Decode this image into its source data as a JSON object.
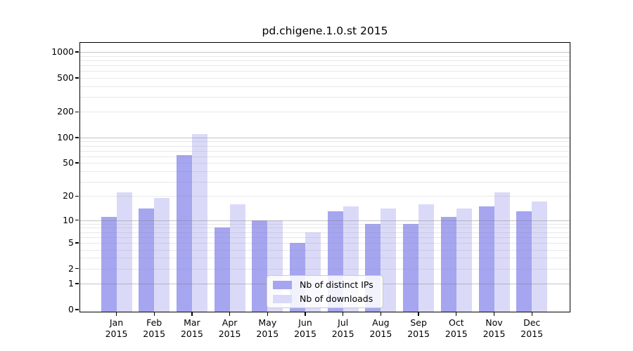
{
  "title": "pd.chigene.1.0.st 2015",
  "chart_data": {
    "type": "bar",
    "title": "pd.chigene.1.0.st 2015",
    "categories": [
      "Jan 2015",
      "Feb 2015",
      "Mar 2015",
      "Apr 2015",
      "May 2015",
      "Jun 2015",
      "Jul 2015",
      "Aug 2015",
      "Sep 2015",
      "Oct 2015",
      "Nov 2015",
      "Dec 2015"
    ],
    "series": [
      {
        "name": "Nb of distinct IPs",
        "color": "#a5a5f0",
        "values": [
          11,
          14,
          62,
          8,
          10,
          5,
          13,
          9,
          9,
          11,
          15,
          13
        ]
      },
      {
        "name": "Nb of downloads",
        "color": "#dadaf8",
        "values": [
          22,
          19,
          110,
          16,
          10,
          7,
          15,
          14,
          16,
          14,
          22,
          17
        ]
      }
    ],
    "xlabel": "",
    "ylabel": "",
    "y_scale": "log1p",
    "ylim": [
      0,
      1300
    ],
    "yticks": [
      0,
      1,
      2,
      5,
      10,
      20,
      50,
      100,
      200,
      500,
      1000
    ],
    "grid": true,
    "legend_position": "bottom-center",
    "colors": {
      "grid_major": "#c8c8c8",
      "grid_minor": "#ececec",
      "axis": "#000000",
      "background": "#ffffff"
    }
  }
}
